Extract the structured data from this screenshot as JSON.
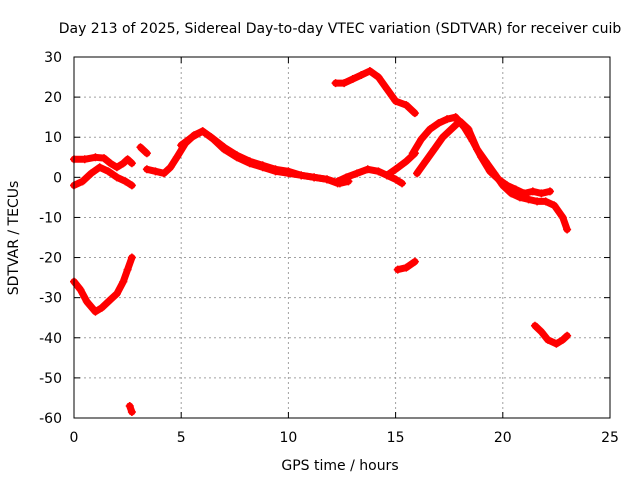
{
  "chart_data": {
    "type": "scatter",
    "title": "Day 213 of 2025, Sidereal Day-to-day VTEC variation (SDTVAR) for receiver cuib",
    "xlabel": "GPS time / hours",
    "ylabel": "SDTVAR / TECUs",
    "xlim": [
      0,
      25
    ],
    "ylim": [
      -60,
      30
    ],
    "xticks": [
      0,
      5,
      10,
      15,
      20,
      25
    ],
    "yticks": [
      30,
      20,
      10,
      0,
      -10,
      -20,
      -30,
      -40,
      -50,
      -60
    ],
    "grid": true,
    "series": [
      {
        "name": "SDTVAR",
        "color": "#ff0000",
        "marker": "+",
        "segments": [
          [
            [
              0,
              4.5
            ],
            [
              0.5,
              4.5
            ],
            [
              1,
              5
            ],
            [
              1.4,
              4.8
            ],
            [
              1.7,
              3.5
            ],
            [
              2,
              2.5
            ],
            [
              2.3,
              3.5
            ],
            [
              2.5,
              4.5
            ],
            [
              2.7,
              3.5
            ]
          ],
          [
            [
              0,
              -2
            ],
            [
              0.4,
              -1
            ],
            [
              0.8,
              1
            ],
            [
              1.2,
              2.5
            ],
            [
              1.6,
              1.5
            ],
            [
              2,
              0
            ],
            [
              2.4,
              -1
            ],
            [
              2.7,
              -2
            ]
          ],
          [
            [
              0,
              -26
            ],
            [
              0.3,
              -28
            ],
            [
              0.6,
              -31
            ],
            [
              1,
              -33.5
            ],
            [
              1.3,
              -32.5
            ],
            [
              1.7,
              -30.5
            ],
            [
              2,
              -29
            ],
            [
              2.3,
              -26
            ],
            [
              2.5,
              -23
            ],
            [
              2.7,
              -20
            ]
          ],
          [
            [
              2.6,
              -57
            ],
            [
              2.7,
              -58.5
            ]
          ],
          [
            [
              3.1,
              7.5
            ],
            [
              3.4,
              6
            ]
          ],
          [
            [
              3.4,
              2
            ],
            [
              3.8,
              1.5
            ],
            [
              4.2,
              1
            ],
            [
              4.5,
              2.5
            ],
            [
              4.8,
              5
            ],
            [
              5.2,
              8.5
            ],
            [
              5.6,
              10.5
            ],
            [
              6,
              11.5
            ],
            [
              6.4,
              10
            ],
            [
              7,
              7.5
            ],
            [
              7.6,
              5.5
            ],
            [
              8.2,
              4
            ],
            [
              8.8,
              3
            ],
            [
              9.4,
              2
            ],
            [
              10,
              1.5
            ],
            [
              10.6,
              0.5
            ],
            [
              11.2,
              0
            ],
            [
              11.8,
              -0.5
            ],
            [
              12.3,
              -1.5
            ]
          ],
          [
            [
              5,
              8
            ],
            [
              5.5,
              10
            ],
            [
              6,
              11.5
            ],
            [
              6.5,
              9.5
            ],
            [
              7,
              7
            ],
            [
              7.6,
              5
            ],
            [
              8.2,
              3.5
            ],
            [
              8.8,
              2.5
            ],
            [
              9.4,
              1.5
            ],
            [
              10,
              1
            ],
            [
              10.6,
              0.5
            ],
            [
              11.2,
              0
            ],
            [
              11.8,
              -0.5
            ],
            [
              12.4,
              -1.5
            ],
            [
              12.8,
              -1
            ]
          ],
          [
            [
              12.3,
              -1
            ],
            [
              12.7,
              0
            ],
            [
              13.2,
              1
            ],
            [
              13.7,
              2
            ],
            [
              14.2,
              1.5
            ],
            [
              14.6,
              0.5
            ],
            [
              15,
              -0.5
            ],
            [
              15.3,
              -1.5
            ]
          ],
          [
            [
              14.6,
              0.5
            ],
            [
              15,
              2
            ],
            [
              15.5,
              4
            ],
            [
              15.9,
              6
            ]
          ],
          [
            [
              12.2,
              23.5
            ],
            [
              12.6,
              23.5
            ],
            [
              13,
              24.5
            ],
            [
              13.4,
              25.5
            ],
            [
              13.8,
              26.5
            ],
            [
              14.2,
              25
            ],
            [
              14.6,
              22
            ],
            [
              15,
              19
            ],
            [
              15.5,
              18
            ],
            [
              15.9,
              16
            ]
          ],
          [
            [
              15.1,
              -23
            ],
            [
              15.5,
              -22.5
            ],
            [
              15.9,
              -21
            ]
          ],
          [
            [
              15.8,
              6
            ],
            [
              16.2,
              9.5
            ],
            [
              16.6,
              12
            ],
            [
              17,
              13.5
            ],
            [
              17.4,
              14.5
            ],
            [
              17.8,
              15
            ],
            [
              18.2,
              12.5
            ],
            [
              18.6,
              9
            ],
            [
              19,
              5
            ],
            [
              19.4,
              1.5
            ],
            [
              19.8,
              -0.5
            ],
            [
              20.2,
              -2
            ],
            [
              20.6,
              -3
            ],
            [
              21,
              -4
            ],
            [
              21.4,
              -3.5
            ],
            [
              21.8,
              -4
            ],
            [
              22.2,
              -3.5
            ]
          ],
          [
            [
              16,
              1
            ],
            [
              16.4,
              4
            ],
            [
              16.8,
              7
            ],
            [
              17.2,
              10
            ],
            [
              17.6,
              12
            ],
            [
              18,
              14
            ],
            [
              18.4,
              12
            ],
            [
              18.8,
              7
            ],
            [
              19.2,
              4
            ],
            [
              19.6,
              1
            ],
            [
              20,
              -2
            ],
            [
              20.4,
              -4
            ],
            [
              20.8,
              -5
            ],
            [
              21.2,
              -5.5
            ],
            [
              21.6,
              -6
            ],
            [
              22,
              -6
            ],
            [
              22.4,
              -7
            ],
            [
              22.8,
              -10
            ],
            [
              23,
              -13
            ]
          ],
          [
            [
              21.5,
              -37
            ],
            [
              21.8,
              -38.5
            ],
            [
              22.1,
              -40.5
            ],
            [
              22.5,
              -41.5
            ],
            [
              22.8,
              -40.5
            ],
            [
              23,
              -39.5
            ]
          ]
        ]
      }
    ]
  }
}
